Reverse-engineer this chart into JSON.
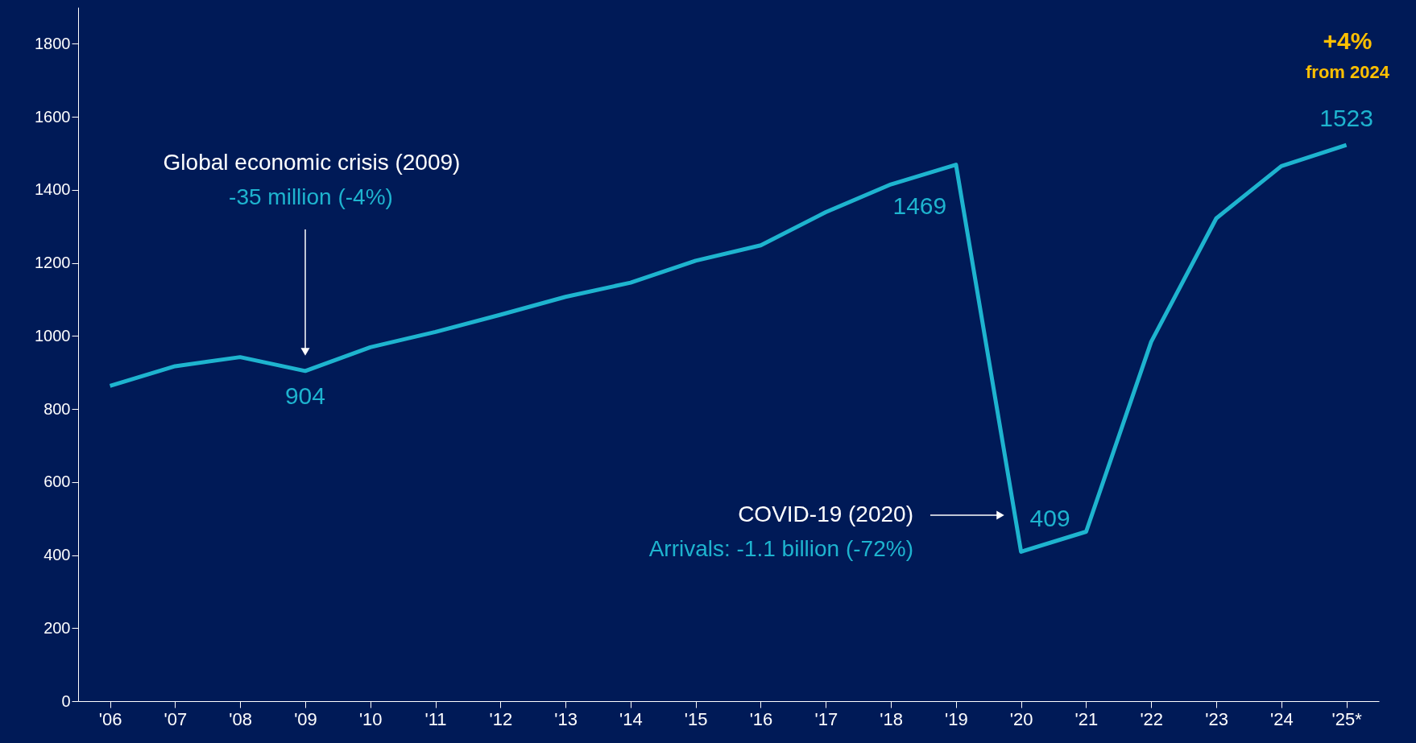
{
  "chart_data": {
    "type": "line",
    "categories": [
      "'06",
      "'07",
      "'08",
      "'09",
      "'10",
      "'11",
      "'12",
      "'13",
      "'14",
      "'15",
      "'16",
      "'17",
      "'18",
      "'19",
      "'20",
      "'21",
      "'22",
      "'23",
      "'24",
      "'25*"
    ],
    "series": [
      {
        "color": "#1eb4cf",
        "values": [
          863,
          917,
          942,
          904,
          969,
          1011,
          1058,
          1107,
          1146,
          1206,
          1248,
          1339,
          1415,
          1469,
          409,
          464,
          984,
          1322,
          1465,
          1523
        ],
        "value_labels": [
          null,
          null,
          null,
          "904",
          null,
          null,
          null,
          null,
          null,
          null,
          null,
          null,
          null,
          "1469",
          "409",
          null,
          null,
          null,
          null,
          "1523"
        ]
      }
    ],
    "ylim": [
      0,
      1900
    ],
    "yticks": [
      0,
      200,
      400,
      600,
      800,
      1000,
      1200,
      1400,
      1600,
      1800
    ],
    "grid": false,
    "marker": "none",
    "line_style": "solid",
    "annotations": [
      "Global economic crisis (2009)",
      "-35 million (-4%)",
      "COVID-19 (2020)",
      "Arrivals: -1.1 billion (-72%)",
      "+4%",
      "from 2024"
    ]
  }
}
